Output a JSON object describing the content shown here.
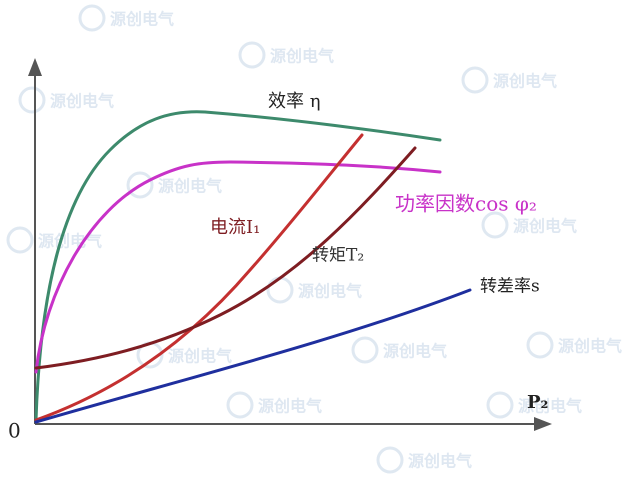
{
  "axes": {
    "origin": "0",
    "x_label": "P₂"
  },
  "curves": [
    {
      "label": "效率 η"
    },
    {
      "label": "功率因数cos φ₂"
    },
    {
      "label": "电流I₁"
    },
    {
      "label": "转矩T₂"
    },
    {
      "label": "转差率s"
    }
  ],
  "watermark": "源创电气"
}
